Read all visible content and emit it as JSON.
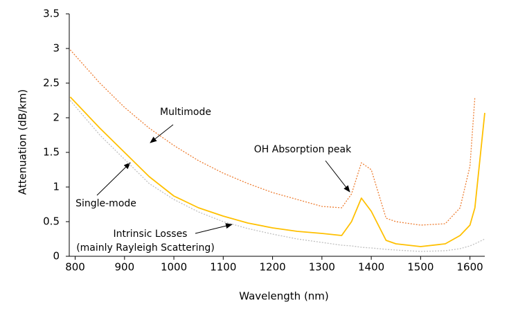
{
  "chart_data": {
    "type": "line",
    "x_label": "Wavelength (nm)",
    "y_label": "Attenuation (dB/km)",
    "x": [
      790,
      850,
      900,
      950,
      1000,
      1050,
      1100,
      1150,
      1200,
      1250,
      1300,
      1340,
      1360,
      1380,
      1400,
      1430,
      1450,
      1500,
      1550,
      1580,
      1600,
      1610,
      1630
    ],
    "series": [
      {
        "name": "Multimode",
        "color": "#ED7D31",
        "dash": "dotted",
        "values": [
          2.98,
          2.5,
          2.15,
          1.85,
          1.6,
          1.38,
          1.2,
          1.05,
          0.92,
          0.82,
          0.72,
          0.7,
          0.9,
          1.35,
          1.25,
          0.55,
          0.5,
          0.45,
          0.47,
          0.7,
          1.3,
          2.3,
          null
        ]
      },
      {
        "name": "Single-mode",
        "color": "#FFC000",
        "dash": "solid",
        "values": [
          2.3,
          1.85,
          1.5,
          1.15,
          0.87,
          0.7,
          0.58,
          0.48,
          0.41,
          0.36,
          0.33,
          0.3,
          0.5,
          0.84,
          0.65,
          0.23,
          0.18,
          0.14,
          0.18,
          0.3,
          0.45,
          0.7,
          2.07
        ]
      },
      {
        "name": "Intrinsic Losses",
        "color": "#BFBFBF",
        "dash": "dotted",
        "values": [
          2.25,
          1.75,
          1.4,
          1.05,
          0.82,
          0.64,
          0.5,
          0.4,
          0.32,
          0.25,
          0.2,
          0.16,
          0.15,
          0.13,
          0.12,
          0.1,
          0.09,
          0.07,
          0.08,
          0.11,
          0.15,
          0.18,
          0.25
        ]
      }
    ],
    "annotations": [
      "Multimode",
      "OH Absorption peak",
      "Single-mode",
      "Intrinsic Losses",
      "(mainly Rayleigh Scattering)"
    ],
    "xlim": [
      788,
      1630
    ],
    "ylim": [
      0,
      3.5
    ],
    "xticks": [
      800,
      900,
      1000,
      1100,
      1200,
      1300,
      1400,
      1500,
      1600
    ],
    "yticks": [
      0,
      0.5,
      1,
      1.5,
      2,
      2.5,
      3,
      3.5
    ],
    "grid": false,
    "legend": false
  }
}
